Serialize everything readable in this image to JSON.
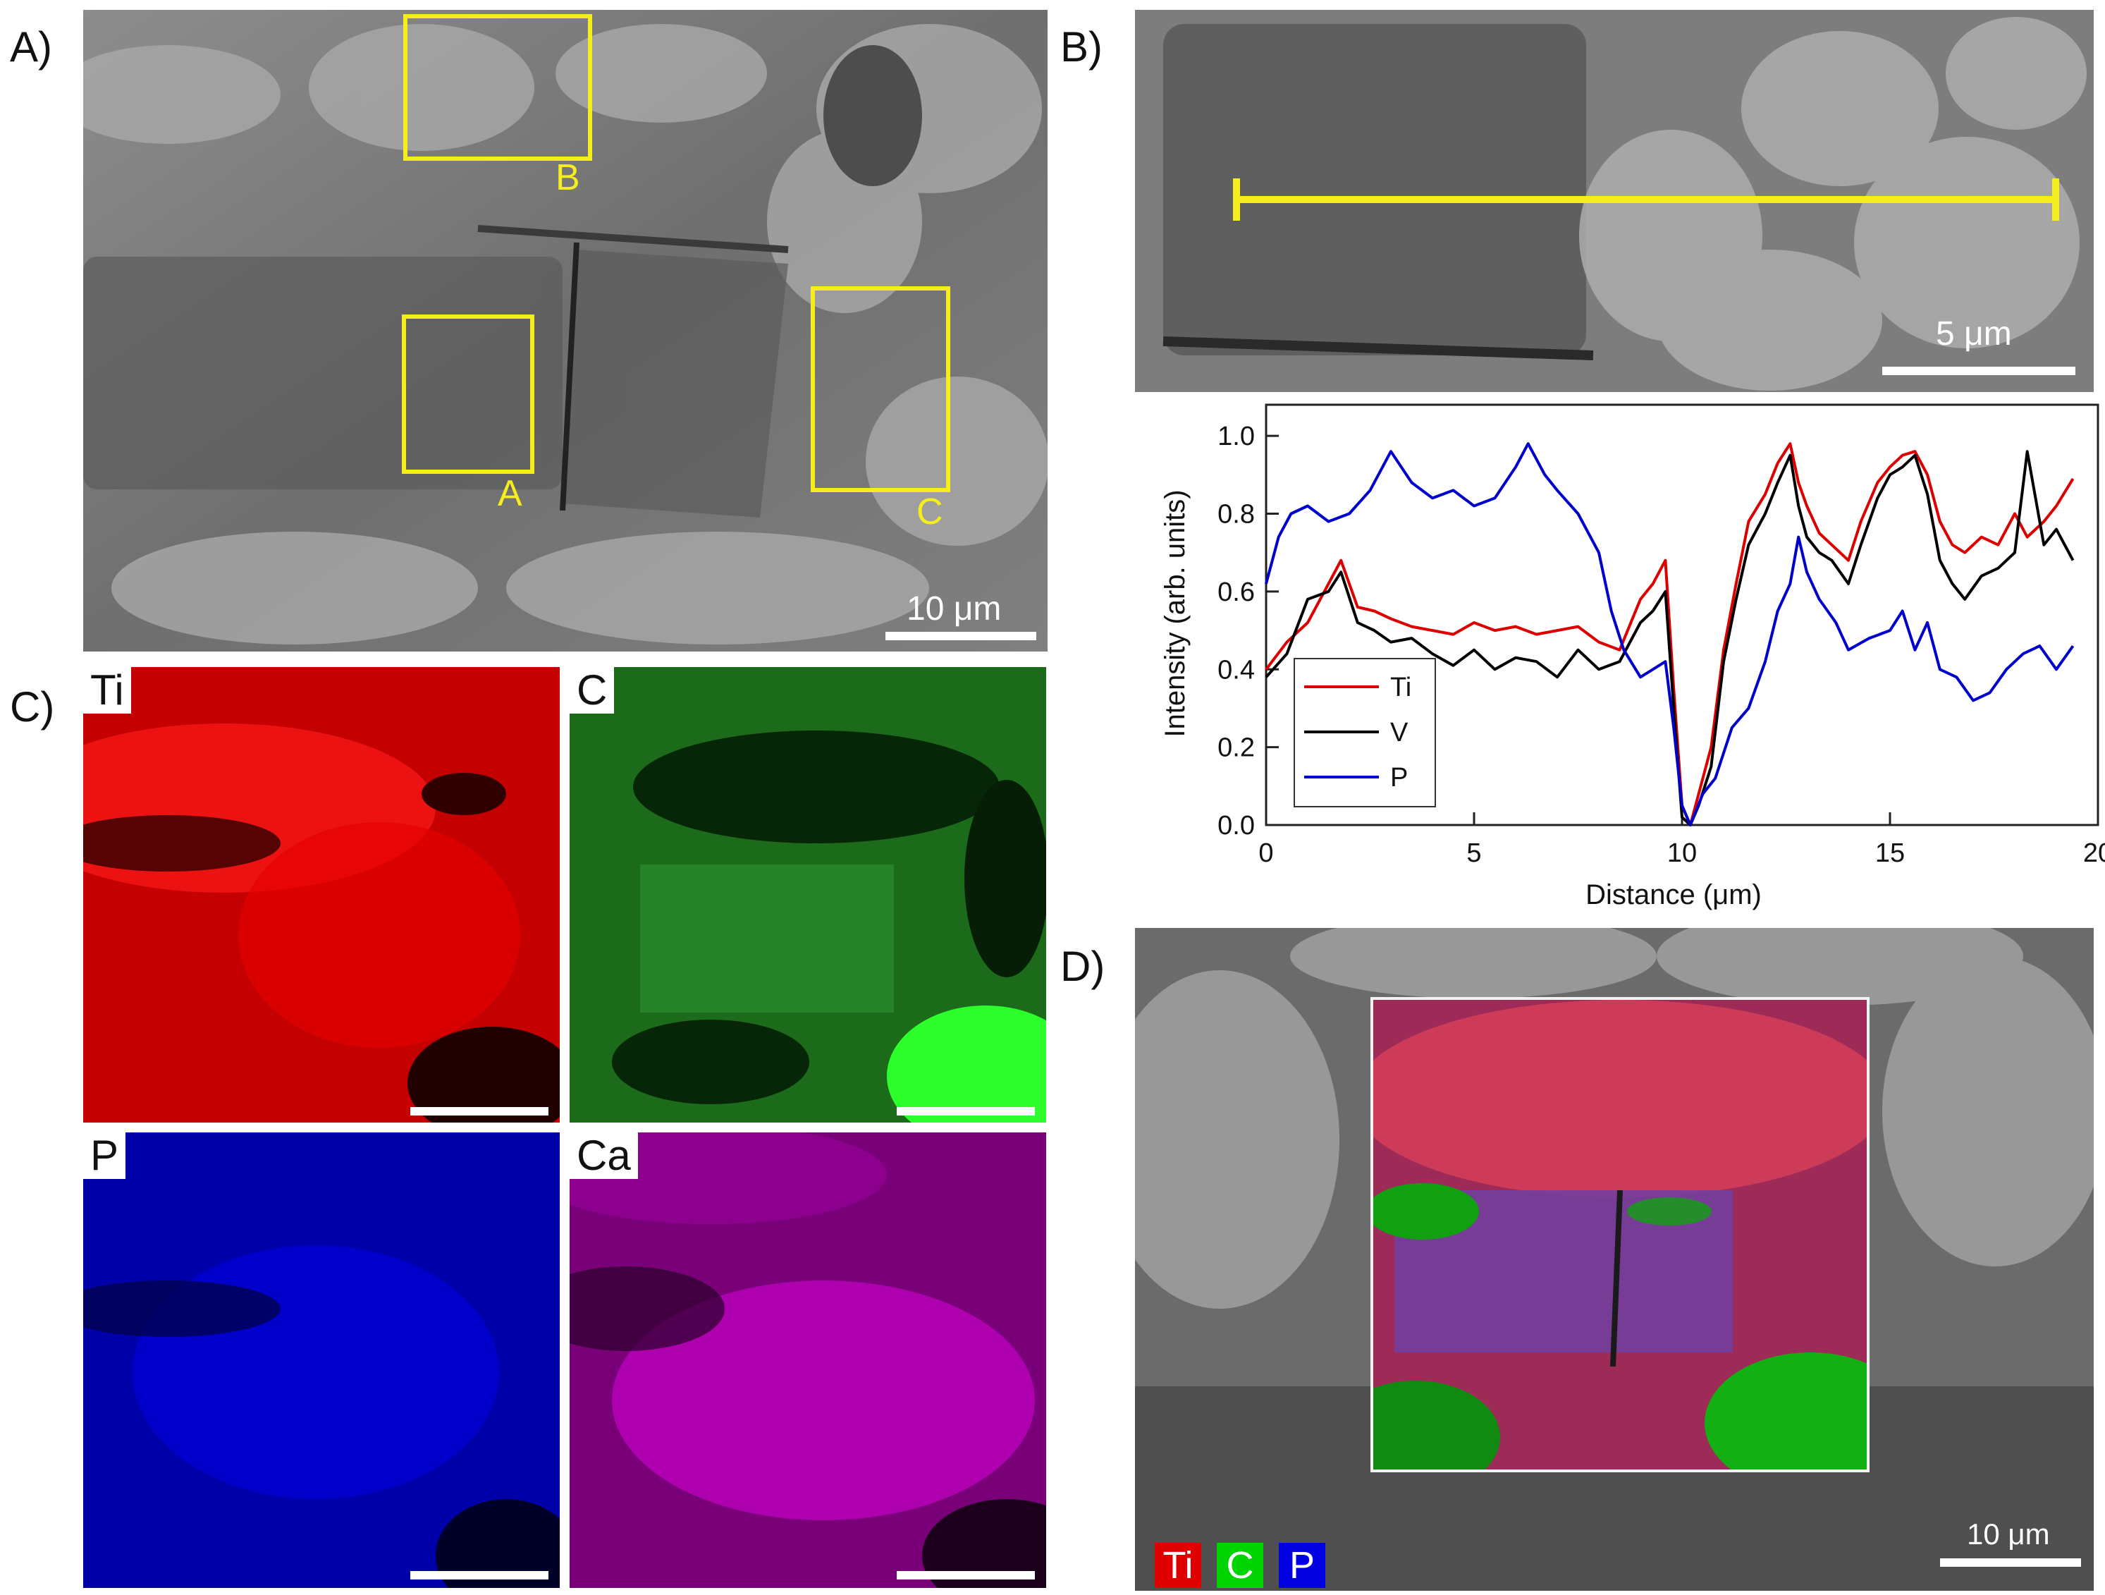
{
  "panels": {
    "a": {
      "label": "A)",
      "boxes": [
        "A",
        "B",
        "C"
      ],
      "scale": "10 μm"
    },
    "b": {
      "label": "B)",
      "scale": "5 μm"
    },
    "c": {
      "label": "C)",
      "maps": [
        "Ti",
        "C",
        "P",
        "Ca"
      ]
    },
    "d": {
      "label": "D)",
      "scale": "10 μm",
      "legend": [
        "Ti",
        "C",
        "P"
      ]
    }
  },
  "colors": {
    "Ti": "#ff0000",
    "C": "#00dd00",
    "P": "#0000ff",
    "Ca": "#cc00cc",
    "V": "#000000",
    "marker": "#f5ee1c"
  },
  "chart_data": {
    "type": "line",
    "xlabel": "Distance (μm)",
    "ylabel": "Intensity (arb. units)",
    "xlim": [
      0,
      20
    ],
    "ylim": [
      0,
      1.08
    ],
    "xticks": [
      "0",
      "5",
      "10",
      "15",
      "20"
    ],
    "yticks": [
      "0.0",
      "0.2",
      "0.4",
      "0.6",
      "0.8",
      "1.0"
    ],
    "legend_position": "bottom-left",
    "series": [
      {
        "name": "Ti",
        "color": "#dd0000",
        "x": [
          0,
          0.5,
          1,
          1.5,
          1.8,
          2.2,
          2.6,
          3,
          3.5,
          4,
          4.5,
          5,
          5.5,
          6,
          6.5,
          7,
          7.5,
          8,
          8.5,
          9,
          9.3,
          9.6,
          9.8,
          10.0,
          10.2,
          10.4,
          10.7,
          11,
          11.3,
          11.6,
          12,
          12.3,
          12.6,
          12.8,
          13,
          13.3,
          13.6,
          14,
          14.3,
          14.7,
          15,
          15.3,
          15.6,
          15.9,
          16.2,
          16.5,
          16.8,
          17.2,
          17.6,
          18,
          18.3,
          18.7,
          19,
          19.4
        ],
        "y": [
          0.4,
          0.47,
          0.52,
          0.62,
          0.68,
          0.56,
          0.55,
          0.53,
          0.51,
          0.5,
          0.49,
          0.52,
          0.5,
          0.51,
          0.49,
          0.5,
          0.51,
          0.47,
          0.45,
          0.58,
          0.62,
          0.68,
          0.35,
          0.05,
          0.0,
          0.08,
          0.2,
          0.45,
          0.62,
          0.78,
          0.85,
          0.93,
          0.98,
          0.88,
          0.82,
          0.75,
          0.72,
          0.68,
          0.78,
          0.88,
          0.92,
          0.95,
          0.96,
          0.9,
          0.78,
          0.72,
          0.7,
          0.74,
          0.72,
          0.8,
          0.74,
          0.78,
          0.82,
          0.89
        ]
      },
      {
        "name": "V",
        "color": "#000000",
        "x": [
          0,
          0.5,
          1,
          1.5,
          1.8,
          2.2,
          2.6,
          3,
          3.5,
          4,
          4.5,
          5,
          5.5,
          6,
          6.5,
          7,
          7.5,
          8,
          8.5,
          9,
          9.3,
          9.6,
          9.8,
          10.0,
          10.2,
          10.4,
          10.7,
          11,
          11.3,
          11.6,
          12,
          12.3,
          12.6,
          12.8,
          13,
          13.3,
          13.6,
          14,
          14.3,
          14.7,
          15,
          15.3,
          15.6,
          15.9,
          16.2,
          16.5,
          16.8,
          17.2,
          17.6,
          18,
          18.3,
          18.7,
          19,
          19.4
        ],
        "y": [
          0.38,
          0.44,
          0.58,
          0.6,
          0.65,
          0.52,
          0.5,
          0.47,
          0.48,
          0.44,
          0.41,
          0.45,
          0.4,
          0.43,
          0.42,
          0.38,
          0.45,
          0.4,
          0.42,
          0.52,
          0.55,
          0.6,
          0.3,
          0.02,
          0.0,
          0.05,
          0.15,
          0.42,
          0.58,
          0.72,
          0.8,
          0.88,
          0.95,
          0.82,
          0.74,
          0.7,
          0.68,
          0.62,
          0.72,
          0.84,
          0.9,
          0.92,
          0.95,
          0.85,
          0.68,
          0.62,
          0.58,
          0.64,
          0.66,
          0.7,
          0.96,
          0.72,
          0.76,
          0.68
        ]
      },
      {
        "name": "P",
        "color": "#0000cc",
        "x": [
          0,
          0.3,
          0.6,
          1,
          1.5,
          2,
          2.5,
          3,
          3.5,
          4,
          4.5,
          5,
          5.5,
          6,
          6.3,
          6.7,
          7,
          7.5,
          8,
          8.3,
          8.6,
          9,
          9.3,
          9.6,
          9.8,
          10.0,
          10.2,
          10.5,
          10.8,
          11.2,
          11.6,
          12,
          12.3,
          12.6,
          12.8,
          13,
          13.3,
          13.7,
          14,
          14.5,
          15,
          15.3,
          15.6,
          15.9,
          16.2,
          16.6,
          17,
          17.4,
          17.8,
          18.2,
          18.6,
          19,
          19.4
        ],
        "y": [
          0.62,
          0.74,
          0.8,
          0.82,
          0.78,
          0.8,
          0.86,
          0.96,
          0.88,
          0.84,
          0.86,
          0.82,
          0.84,
          0.92,
          0.98,
          0.9,
          0.86,
          0.8,
          0.7,
          0.55,
          0.45,
          0.38,
          0.4,
          0.42,
          0.25,
          0.05,
          0.0,
          0.08,
          0.12,
          0.25,
          0.3,
          0.42,
          0.55,
          0.62,
          0.74,
          0.65,
          0.58,
          0.52,
          0.45,
          0.48,
          0.5,
          0.55,
          0.45,
          0.52,
          0.4,
          0.38,
          0.32,
          0.34,
          0.4,
          0.44,
          0.46,
          0.4,
          0.46
        ]
      }
    ]
  }
}
